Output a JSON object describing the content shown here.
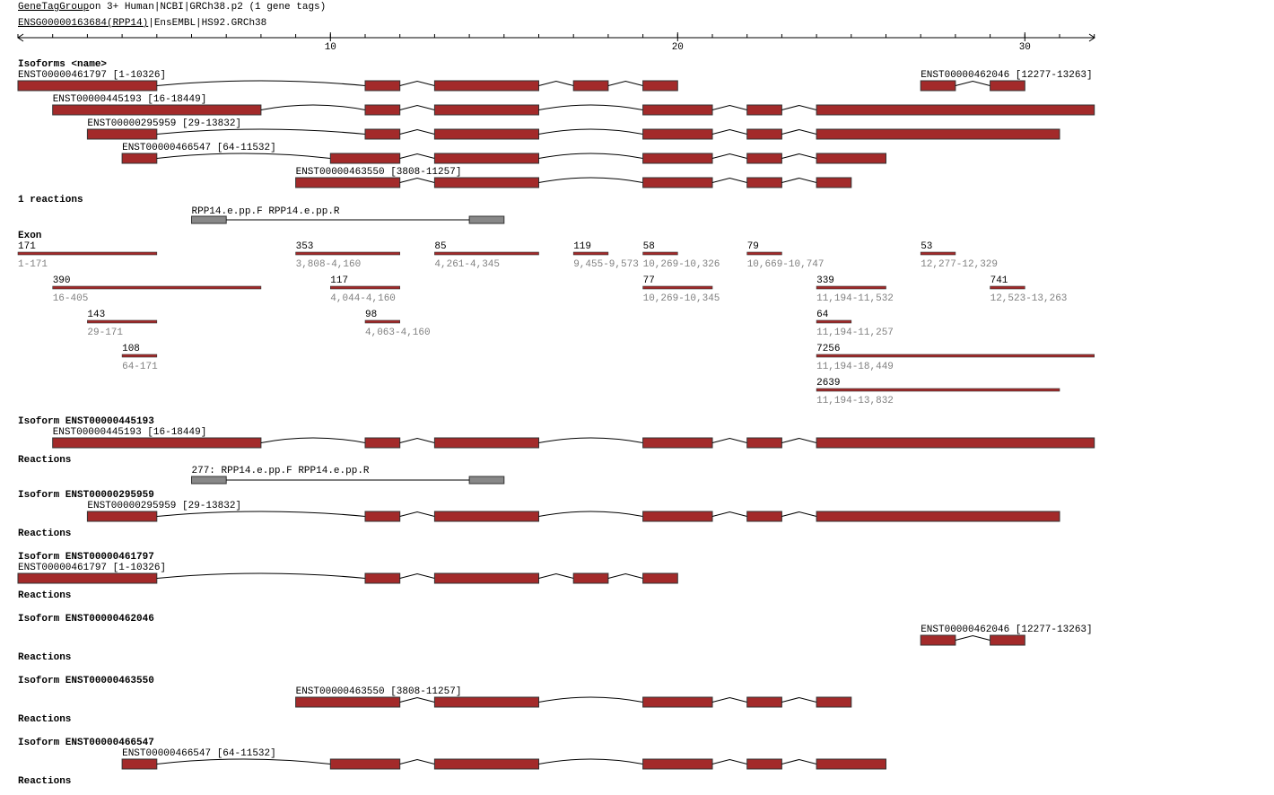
{
  "header": {
    "title_link": "GeneTagGroup",
    "title_rest": " on 3+ Human|NCBI|GRCh38.p2 (1 gene tags)",
    "gene_link": "ENSG00000163684(RPP14)",
    "gene_rest": "|EnsEMBL|HS92.GRCh38"
  },
  "axis": {
    "ticks": [
      10,
      20,
      30
    ]
  },
  "isoforms": {
    "title": "Isoforms <name>",
    "tracks": [
      {
        "label": "ENST00000461797 [1-10326]"
      },
      {
        "label": "ENST00000462046 [12277-13263]"
      },
      {
        "label": "ENST00000445193 [16-18449]"
      },
      {
        "label": "ENST00000295959 [29-13832]"
      },
      {
        "label": "ENST00000466547 [64-11532]"
      },
      {
        "label": "ENST00000463550 [3808-11257]"
      }
    ]
  },
  "reactions": {
    "title": "1 reactions",
    "label": "RPP14.e.pp.F RPP14.e.pp.R"
  },
  "exon": {
    "title": "Exon",
    "rows": [
      [
        {
          "length": "171",
          "range": "1-171"
        },
        {
          "length": "353",
          "range": "3,808-4,160"
        },
        {
          "length": "85",
          "range": "4,261-4,345"
        },
        {
          "length": "119",
          "range": "9,455-9,573"
        },
        {
          "length": "58",
          "range": "10,269-10,326"
        },
        {
          "length": "79",
          "range": "10,669-10,747"
        },
        {
          "length": "53",
          "range": "12,277-12,329"
        }
      ],
      [
        {
          "length": "390",
          "range": "16-405"
        },
        {
          "length": "117",
          "range": "4,044-4,160"
        },
        {
          "length": "77",
          "range": "10,269-10,345"
        },
        {
          "length": "339",
          "range": "11,194-11,532"
        },
        {
          "length": "741",
          "range": "12,523-13,263"
        }
      ],
      [
        {
          "length": "143",
          "range": "29-171"
        },
        {
          "length": "98",
          "range": "4,063-4,160"
        },
        {
          "length": "64",
          "range": "11,194-11,257"
        }
      ],
      [
        {
          "length": "108",
          "range": "64-171"
        },
        {
          "length": "7256",
          "range": "11,194-18,449"
        }
      ],
      [
        {
          "length": "2639",
          "range": "11,194-13,832"
        }
      ]
    ]
  },
  "sections": [
    {
      "title": "Isoform ENST00000445193",
      "track": "ENST00000445193 [16-18449]",
      "reactions_title": "Reactions",
      "reaction": "277: RPP14.e.pp.F RPP14.e.pp.R"
    },
    {
      "title": "Isoform ENST00000295959",
      "track": "ENST00000295959 [29-13832]",
      "reactions_title": "Reactions"
    },
    {
      "title": "Isoform ENST00000461797",
      "track": "ENST00000461797 [1-10326]",
      "reactions_title": "Reactions"
    },
    {
      "title": "Isoform ENST00000462046",
      "track": "ENST00000462046 [12277-13263]",
      "reactions_title": "Reactions"
    },
    {
      "title": "Isoform ENST00000463550",
      "track": "ENST00000463550 [3808-11257]",
      "reactions_title": "Reactions"
    },
    {
      "title": "Isoform ENST00000466547",
      "track": "ENST00000466547 [64-11532]",
      "reactions_title": "Reactions"
    }
  ]
}
